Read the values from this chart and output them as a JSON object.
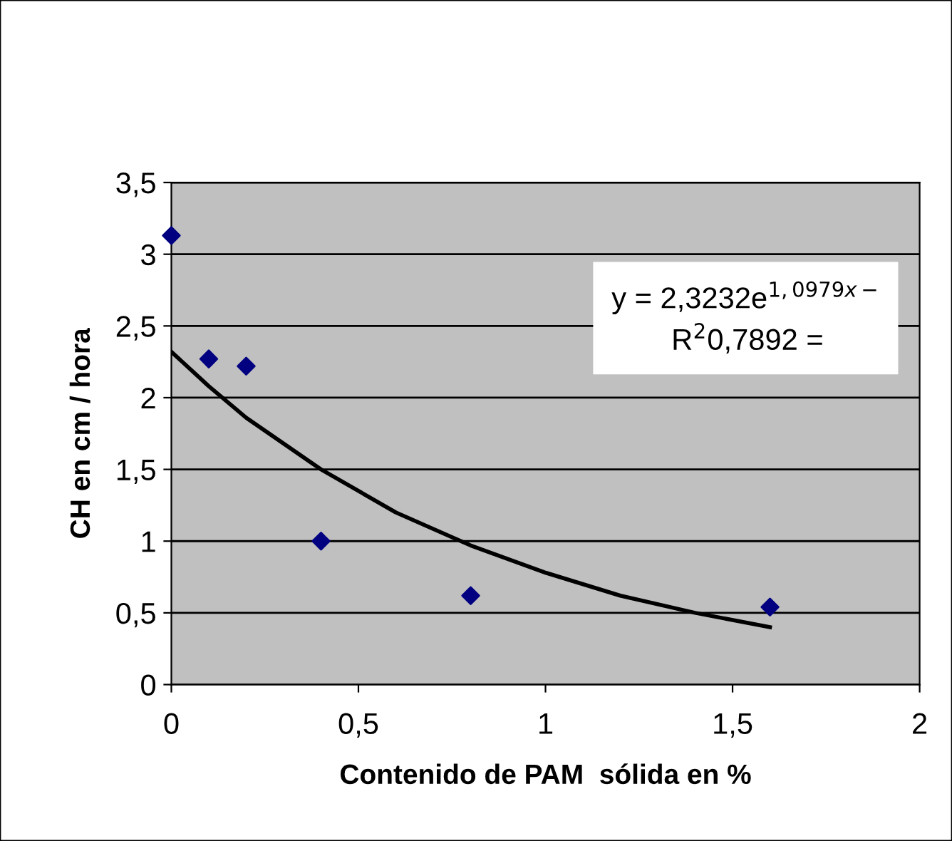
{
  "chart_data": {
    "type": "scatter",
    "xlabel": "Contenido de PAM  sólida en %",
    "ylabel": "CH en cm / hora",
    "series": [
      {
        "color": "#000080",
        "marker": "diamond",
        "x": [
          0,
          0.1,
          0.2,
          0.4,
          0.8,
          1.6
        ],
        "values": [
          3.13,
          2.27,
          2.22,
          1.0,
          0.62,
          0.54
        ]
      },
      {
        "type": "line",
        "color": "#000000",
        "marker": "none",
        "line_style": "solid",
        "x": [
          0,
          0.1,
          0.2,
          0.4,
          0.6,
          0.8,
          1.0,
          1.2,
          1.4,
          1.6
        ],
        "values": [
          2.32,
          2.08,
          1.86,
          1.5,
          1.2,
          0.97,
          0.78,
          0.62,
          0.5,
          0.4
        ]
      }
    ],
    "annotations": [
      "y = 2,3232e$^{1,0979x−}$",
      "R$^{2}$0,7892 ="
    ],
    "xlim": [
      0,
      2
    ],
    "ylim": [
      0,
      3.5
    ],
    "xticks": [
      0,
      {
        "value": 0.5,
        "label": "0,5"
      },
      1,
      {
        "value": 1.5,
        "label": "1,5"
      },
      2
    ],
    "yticks": [
      0,
      {
        "value": 0.5,
        "label": "0,5"
      },
      1,
      {
        "value": 1.5,
        "label": "1,5"
      },
      2,
      {
        "value": 2.5,
        "label": "2,5"
      },
      3,
      {
        "value": 3.5,
        "label": "3,5"
      }
    ],
    "grid": "y"
  }
}
